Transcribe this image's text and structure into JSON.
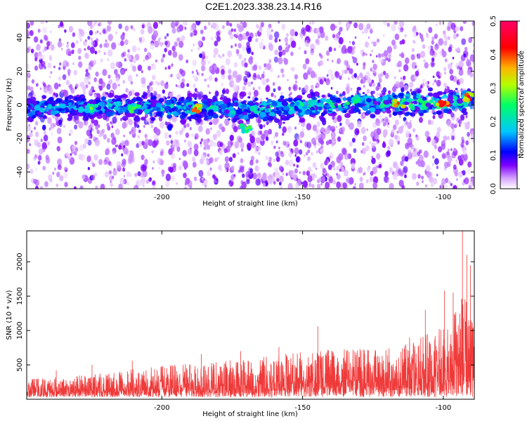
{
  "title": "C2E1.2023.338.23.14.R16",
  "chart_data": [
    {
      "type": "heatmap",
      "title": "C2E1.2023.338.23.14.R16",
      "xlabel": "Height of straight line (km)",
      "ylabel": "Frequency (Hz)",
      "xlim": [
        -248,
        -89
      ],
      "ylim": [
        -50,
        50
      ],
      "x_ticks": [
        -200,
        -150,
        -100
      ],
      "y_ticks": [
        -40,
        -20,
        0,
        20,
        40
      ],
      "colorbar": {
        "label": "Normalized spectral amplitude",
        "range": [
          0,
          0.5
        ],
        "ticks": [
          "0.0",
          "0.1",
          "0.2",
          "0.3",
          "0.4",
          "0.5"
        ],
        "colors": [
          "#ffffff",
          "#d8a8ff",
          "#7f00ff",
          "#0000ff",
          "#00c8ff",
          "#00ff66",
          "#b4ff00",
          "#ffb400",
          "#ff0000",
          "#ff0066"
        ]
      },
      "band": {
        "center_hz": [
          [
            -248,
            -2
          ],
          [
            -220,
            -1
          ],
          [
            -190,
            -2
          ],
          [
            -170,
            -3
          ],
          [
            -150,
            -1
          ],
          [
            -130,
            1
          ],
          [
            -110,
            1
          ],
          [
            -89,
            2
          ]
        ],
        "peaks": [
          {
            "x": -225,
            "y": -2,
            "amp": 0.3
          },
          {
            "x": -210,
            "y": -2,
            "amp": 0.28
          },
          {
            "x": -188,
            "y": -2,
            "amp": 0.4
          },
          {
            "x": -170,
            "y": -14,
            "amp": 0.28
          },
          {
            "x": -150,
            "y": 0,
            "amp": 0.25
          },
          {
            "x": -130,
            "y": 3,
            "amp": 0.25
          },
          {
            "x": -116,
            "y": 1,
            "amp": 0.4
          },
          {
            "x": -100,
            "y": 0,
            "amp": 0.45
          },
          {
            "x": -91,
            "y": 5,
            "amp": 0.45
          }
        ]
      }
    },
    {
      "type": "line",
      "xlabel": "Height of straight line (km)",
      "ylabel": "SNR (10 * v/v)",
      "xlim": [
        -248,
        -89
      ],
      "ylim": [
        0,
        2450
      ],
      "x_ticks": [
        -200,
        -150,
        -100
      ],
      "y_ticks": [
        500,
        1000,
        1500,
        2000
      ],
      "color": "#ef3a3a",
      "envelope": [
        [
          -248,
          270
        ],
        [
          -235,
          300
        ],
        [
          -225,
          340
        ],
        [
          -215,
          380
        ],
        [
          -205,
          420
        ],
        [
          -195,
          460
        ],
        [
          -185,
          490
        ],
        [
          -175,
          520
        ],
        [
          -165,
          560
        ],
        [
          -155,
          610
        ],
        [
          -145,
          650
        ],
        [
          -135,
          660
        ],
        [
          -125,
          680
        ],
        [
          -115,
          720
        ],
        [
          -108,
          820
        ],
        [
          -102,
          950
        ],
        [
          -97,
          1150
        ],
        [
          -94,
          1350
        ],
        [
          -92,
          1400
        ],
        [
          -89,
          1350
        ]
      ],
      "spikes": [
        {
          "x": -93.2,
          "y": 2450
        },
        {
          "x": -91.6,
          "y": 2100
        },
        {
          "x": -90.4,
          "y": 1950
        },
        {
          "x": -96.5,
          "y": 1550
        },
        {
          "x": -99.6,
          "y": 1580
        },
        {
          "x": -106.4,
          "y": 1300
        },
        {
          "x": -112.0,
          "y": 900
        },
        {
          "x": -144.6,
          "y": 1060
        },
        {
          "x": -158.4,
          "y": 760
        },
        {
          "x": -172.0,
          "y": 700
        },
        {
          "x": -186.0,
          "y": 660
        },
        {
          "x": -210.5,
          "y": 560
        },
        {
          "x": -224.8,
          "y": 500
        },
        {
          "x": -237.5,
          "y": 420
        }
      ]
    }
  ]
}
